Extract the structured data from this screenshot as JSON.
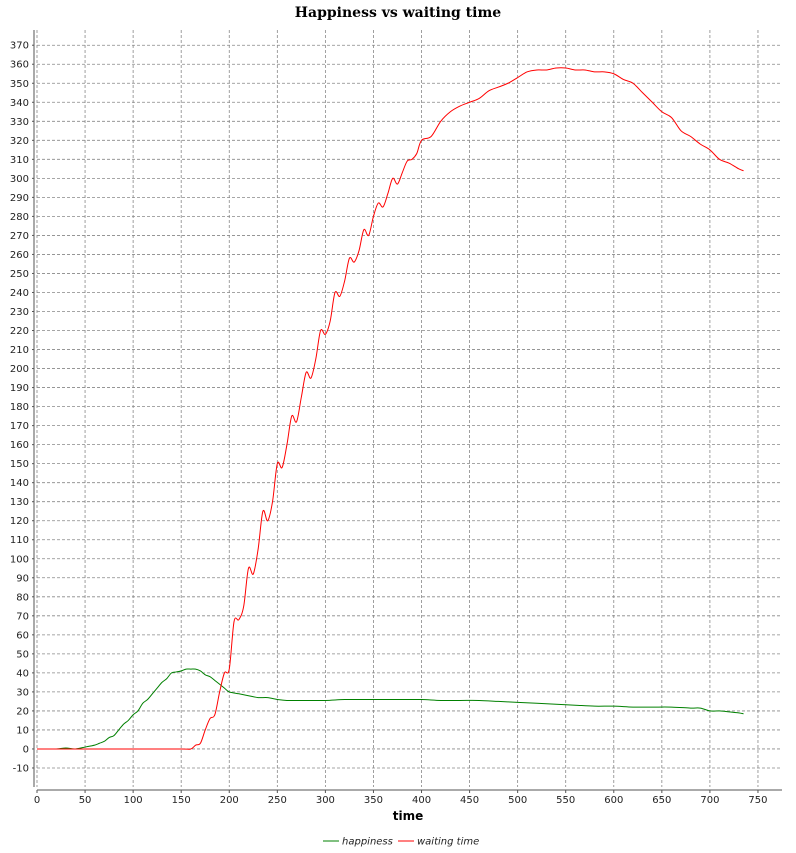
{
  "chart_data": {
    "type": "line",
    "title": "Happiness vs waiting time",
    "xlabel": "time",
    "ylabel": "",
    "xlim": [
      0,
      775
    ],
    "ylim": [
      -20,
      378
    ],
    "x_ticks": [
      0,
      50,
      100,
      150,
      200,
      250,
      300,
      350,
      400,
      450,
      500,
      550,
      600,
      650,
      700,
      750
    ],
    "y_ticks": [
      -10,
      0,
      10,
      20,
      30,
      40,
      50,
      60,
      70,
      80,
      90,
      100,
      110,
      120,
      130,
      140,
      150,
      160,
      170,
      180,
      190,
      200,
      210,
      220,
      230,
      240,
      250,
      260,
      270,
      280,
      290,
      300,
      310,
      320,
      330,
      340,
      350,
      360,
      370
    ],
    "grid": true,
    "legend_position": "bottom-center",
    "series": [
      {
        "name": "happiness",
        "color": "#008000",
        "x": [
          0,
          20,
          30,
          40,
          50,
          55,
          60,
          65,
          70,
          75,
          80,
          85,
          90,
          95,
          100,
          105,
          110,
          115,
          120,
          125,
          130,
          135,
          140,
          145,
          150,
          155,
          160,
          165,
          170,
          175,
          180,
          185,
          190,
          195,
          200,
          210,
          220,
          230,
          240,
          250,
          260,
          280,
          300,
          320,
          340,
          360,
          380,
          400,
          420,
          440,
          460,
          480,
          500,
          520,
          540,
          560,
          580,
          600,
          620,
          640,
          660,
          680,
          690,
          700,
          710,
          720,
          730,
          735
        ],
        "y": [
          0,
          0,
          0.5,
          0,
          1,
          1.5,
          2,
          3,
          4,
          6,
          7,
          10,
          13,
          15,
          18,
          20,
          24,
          26,
          29,
          32,
          35,
          37,
          40,
          40.5,
          41,
          42,
          42,
          42,
          41,
          39,
          38,
          36,
          34,
          32,
          30,
          29,
          28,
          27,
          27,
          26,
          25.5,
          25.5,
          25.5,
          26,
          26,
          26,
          26,
          26,
          25.5,
          25.5,
          25.5,
          25,
          24.5,
          24,
          23.5,
          23,
          22.5,
          22.5,
          22,
          22,
          22,
          21.5,
          21.5,
          20,
          20,
          19.5,
          19,
          18.5
        ]
      },
      {
        "name": "waiting time",
        "color": "#ff0000",
        "x": [
          0,
          50,
          100,
          150,
          160,
          165,
          170,
          175,
          180,
          185,
          190,
          195,
          200,
          205,
          210,
          215,
          220,
          225,
          230,
          235,
          240,
          245,
          250,
          255,
          260,
          265,
          270,
          275,
          280,
          285,
          290,
          295,
          300,
          305,
          310,
          315,
          320,
          325,
          330,
          335,
          340,
          345,
          350,
          355,
          360,
          365,
          370,
          375,
          380,
          385,
          390,
          395,
          400,
          410,
          420,
          430,
          440,
          450,
          460,
          470,
          480,
          490,
          500,
          510,
          520,
          530,
          540,
          550,
          560,
          570,
          580,
          590,
          600,
          610,
          620,
          630,
          640,
          650,
          660,
          670,
          680,
          690,
          700,
          710,
          720,
          730,
          735
        ],
        "y": [
          0,
          0,
          0,
          0,
          0,
          2,
          3,
          10,
          16,
          18,
          30,
          40,
          42,
          67,
          68,
          75,
          95,
          92,
          105,
          125,
          120,
          130,
          150,
          148,
          160,
          175,
          172,
          185,
          198,
          195,
          205,
          220,
          218,
          225,
          240,
          238,
          246,
          258,
          256,
          262,
          273,
          270,
          280,
          287,
          285,
          292,
          300,
          297,
          303,
          309,
          310,
          313,
          320,
          322,
          330,
          335,
          338,
          340,
          342,
          346,
          348,
          350,
          353,
          356,
          357,
          357,
          358,
          358,
          357,
          357,
          356,
          356,
          355,
          352,
          350,
          345,
          340,
          335,
          332,
          325,
          322,
          318,
          315,
          310,
          308,
          305,
          304
        ]
      }
    ]
  }
}
